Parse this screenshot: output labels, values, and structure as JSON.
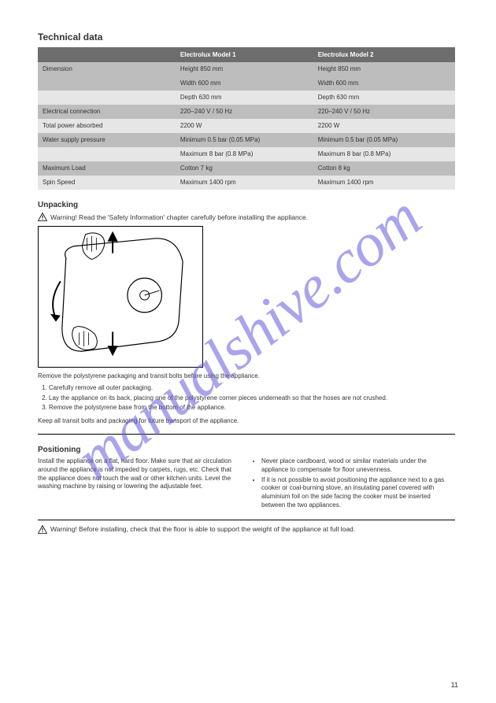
{
  "watermark": "manualshive.com",
  "page_number": "11",
  "section": {
    "heading": "Technical data",
    "table": {
      "columns": [
        "",
        "Electrolux Model 1",
        "Electrolux Model 2"
      ],
      "rows": [
        {
          "shade": "dark",
          "cells": [
            "Dimension",
            "Height 850 mm",
            "Height 850 mm"
          ]
        },
        {
          "shade": "dark",
          "cells": [
            "",
            "Width 600 mm",
            "Width 600 mm"
          ]
        },
        {
          "shade": "light",
          "cells": [
            "",
            "Depth 630 mm",
            "Depth 630 mm"
          ]
        },
        {
          "shade": "dark",
          "cells": [
            "Electrical connection",
            "220–240 V / 50 Hz",
            "220–240 V / 50 Hz"
          ]
        },
        {
          "shade": "light",
          "cells": [
            "Total power absorbed",
            "2200 W",
            "2200 W"
          ]
        },
        {
          "shade": "dark",
          "cells": [
            "Water supply pressure",
            "Minimum 0.5 bar (0.05 MPa)",
            "Minimum 0.5 bar (0.05 MPa)"
          ]
        },
        {
          "shade": "light",
          "cells": [
            "",
            "Maximum 8 bar (0.8 MPa)",
            "Maximum 8 bar (0.8 MPa)"
          ]
        },
        {
          "shade": "dark",
          "cells": [
            "Maximum Load",
            "Cotton 7 kg",
            "Cotton 8 kg"
          ]
        },
        {
          "shade": "light",
          "cells": [
            "Spin Speed",
            "Maximum 1400 rpm",
            "Maximum 1400 rpm"
          ]
        }
      ]
    }
  },
  "unpacking": {
    "heading": "Unpacking",
    "warning": "Warning! Read the 'Safety Information' chapter carefully before installing the appliance.",
    "caption": "Remove the polystyrene packaging and transit bolts before using the appliance.",
    "steps": [
      "Carefully remove all outer packaging.",
      "Lay the appliance on its back, placing one of the polystyrene corner pieces underneath so that the hoses are not crushed.",
      "Remove the polystyrene base from the bottom of the appliance."
    ],
    "note": "Keep all transit bolts and packaging for future transport of the appliance."
  },
  "positioning": {
    "heading": "Positioning",
    "left": "Install the appliance on a flat, hard floor. Make sure that air circulation around the appliance is not impeded by carpets, rugs, etc. Check that the appliance does not touch the wall or other kitchen units. Level the washing machine by raising or lowering the adjustable feet.",
    "bullets": [
      "Never place cardboard, wood or similar materials under the appliance to compensate for floor unevenness.",
      "If it is not possible to avoid positioning the appliance next to a gas cooker or coal-burning stove, an insulating panel covered with aluminium foil on the side facing the cooker must be inserted between the two appliances."
    ],
    "warning": "Warning! Before installing, check that the floor is able to support the weight of the appliance at full load."
  },
  "colors": {
    "header_bg": "#6d6d6d",
    "row_dark": "#bdbdbd",
    "row_light": "#e6e6e6",
    "watermark": "rgba(100,90,220,0.55)"
  }
}
